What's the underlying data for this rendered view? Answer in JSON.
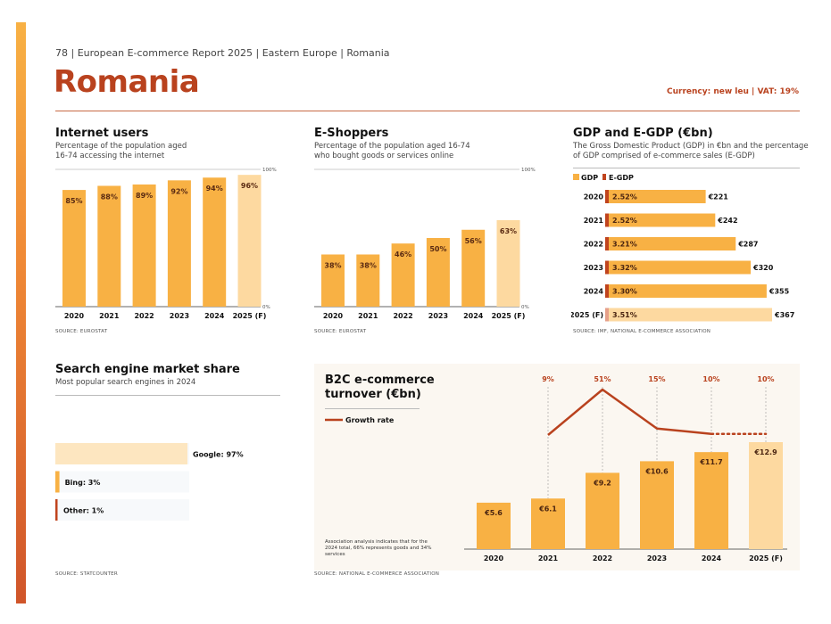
{
  "header": {
    "breadcrumb": "78 | European E-commerce Report 2025 | Eastern Europe | Romania",
    "title": "Romania",
    "currency": "Currency: new leu | VAT: 19%"
  },
  "colors": {
    "bar": "#f8b144",
    "forecast": "#fdd9a0",
    "accent": "#b9421e",
    "egdp": "#c0441e",
    "egdp_forecast": "#e6a08a"
  },
  "internet_users": {
    "title": "Internet users",
    "subtitle_line1": "Percentage of the population aged",
    "subtitle_line2": "16-74 accessing the internet",
    "axis_max_label": "100%",
    "axis_min_label": "0%",
    "source": "SOURCE: EUROSTAT"
  },
  "e_shoppers": {
    "title": "E-Shoppers",
    "subtitle_line1": "Percentage of the population aged 16-74",
    "subtitle_line2": "who bought goods or services online",
    "axis_max_label": "100%",
    "axis_min_label": "0%",
    "source": "SOURCE: EUROSTAT"
  },
  "gdp": {
    "title": "GDP and E-GDP (€bn)",
    "subtitle_line1": "The Gross Domestic Product (GDP) in €bn and the percentage",
    "subtitle_line2": "of GDP comprised of e-commerce sales (E-GDP)",
    "source": "SOURCE: IMF, NATIONAL E-COMMERCE ASSOCIATION"
  },
  "search": {
    "title": "Search engine market share",
    "subtitle": "Most popular search engines in 2024",
    "source": "SOURCE: STATCOUNTER"
  },
  "b2c": {
    "title_line1": "B2C e-commerce",
    "title_line2": "turnover (€bn)",
    "note": "Association analysis indicates that for the 2024 total, 66% represents goods and 34% services",
    "source": "SOURCE: NATIONAL E-COMMERCE ASSOCIATION"
  },
  "chart_data": [
    {
      "id": "internet_users",
      "type": "bar",
      "categories": [
        "2020",
        "2021",
        "2022",
        "2023",
        "2024",
        "2025 (F)"
      ],
      "values": [
        85,
        88,
        89,
        92,
        94,
        96
      ],
      "labels": [
        "85%",
        "88%",
        "89%",
        "92%",
        "94%",
        "96%"
      ],
      "forecast_index": 5,
      "ylim": [
        0,
        100
      ]
    },
    {
      "id": "e_shoppers",
      "type": "bar",
      "categories": [
        "2020",
        "2021",
        "2022",
        "2023",
        "2024",
        "2025 (F)"
      ],
      "values": [
        38,
        38,
        46,
        50,
        56,
        63
      ],
      "labels": [
        "38%",
        "38%",
        "46%",
        "50%",
        "56%",
        "63%"
      ],
      "forecast_index": 5,
      "ylim": [
        0,
        100
      ]
    },
    {
      "id": "gdp_egdp",
      "type": "bar",
      "orientation": "horizontal",
      "legend": [
        "GDP",
        "E-GDP"
      ],
      "categories": [
        "2020",
        "2021",
        "2022",
        "2023",
        "2024",
        "2025 (F)"
      ],
      "gdp": [
        221,
        242,
        287,
        320,
        355,
        367
      ],
      "gdp_labels": [
        "€221",
        "€242",
        "€287",
        "€320",
        "€355",
        "€367"
      ],
      "egdp_pct": [
        2.52,
        2.52,
        3.21,
        3.32,
        3.3,
        3.51
      ],
      "egdp_labels": [
        "2.52%",
        "2.52%",
        "3.21%",
        "3.32%",
        "3.30%",
        "3.51%"
      ],
      "forecast_index": 5
    },
    {
      "id": "search_engines",
      "type": "bar",
      "orientation": "horizontal",
      "categories": [
        "Google",
        "Bing",
        "Other"
      ],
      "values": [
        97,
        3,
        1
      ],
      "labels": [
        "Google: 97%",
        "Bing: 3%",
        "Other: 1%"
      ]
    },
    {
      "id": "b2c_turnover",
      "type": "bar",
      "categories": [
        "2020",
        "2021",
        "2022",
        "2023",
        "2024",
        "2025 (F)"
      ],
      "values": [
        5.6,
        6.1,
        9.2,
        10.6,
        11.7,
        12.9
      ],
      "labels": [
        "€5.6",
        "€6.1",
        "€9.2",
        "€10.6",
        "€11.7",
        "€12.9"
      ],
      "forecast_index": 5,
      "growth_legend": "Growth rate",
      "growth": [
        null,
        9,
        51,
        15,
        10,
        10
      ],
      "growth_labels": [
        "",
        "9%",
        "51%",
        "15%",
        "10%",
        "10%"
      ]
    }
  ]
}
